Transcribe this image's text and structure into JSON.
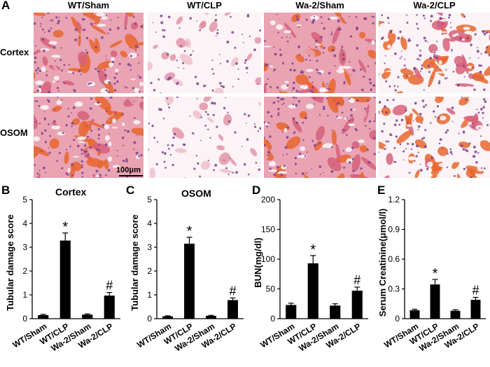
{
  "panel_a": {
    "letter": "A",
    "columns": [
      "WT/Sham",
      "WT/CLP",
      "Wa-2/Sham",
      "Wa-2/CLP"
    ],
    "rows": [
      "Cortex",
      "OSOM"
    ],
    "scale_bar": "100μm"
  },
  "chart_data": [
    {
      "type": "bar",
      "letter": "B",
      "title": "Cortex",
      "ylabel": "Tubular damage score",
      "categories": [
        "WT/Sham",
        "WT/CLP",
        "Wa-2/Sham",
        "Wa-2/CLP"
      ],
      "values": [
        0.15,
        3.28,
        0.17,
        0.97
      ],
      "errors": [
        0.03,
        0.32,
        0.03,
        0.13
      ],
      "annotations": [
        "",
        "*",
        "",
        "#"
      ],
      "ylim": [
        0,
        5
      ],
      "yticks": [
        "0",
        "1",
        "2",
        "3",
        "4",
        "5"
      ]
    },
    {
      "type": "bar",
      "letter": "C",
      "title": "OSOM",
      "ylabel": "Tubular damage score",
      "categories": [
        "WT/Sham",
        "WT/CLP",
        "Wa-2/Sham",
        "Wa-2/CLP"
      ],
      "values": [
        0.1,
        3.15,
        0.12,
        0.78
      ],
      "errors": [
        0.02,
        0.27,
        0.02,
        0.09
      ],
      "annotations": [
        "",
        "*",
        "",
        "#"
      ],
      "ylim": [
        0,
        5
      ],
      "yticks": [
        "0",
        "1",
        "2",
        "3",
        "4",
        "5"
      ]
    },
    {
      "type": "bar",
      "letter": "D",
      "title": "",
      "ylabel": "BUN(mg/dl)",
      "categories": [
        "WT/Sham",
        "WT/CLP",
        "Wa-2/Sham",
        "Wa-2/CLP"
      ],
      "values": [
        23,
        93,
        22,
        47
      ],
      "errors": [
        3,
        13,
        3,
        6
      ],
      "annotations": [
        "",
        "*",
        "",
        "#"
      ],
      "ylim": [
        0,
        200
      ],
      "yticks": [
        "0",
        "50",
        "100",
        "150",
        "200"
      ]
    },
    {
      "type": "bar",
      "letter": "E",
      "title": "",
      "ylabel": "Serum Creatinine(μmol/l)",
      "categories": [
        "WT/Sham",
        "WT/CLP",
        "Wa-2/Sham",
        "Wa-2/CLP"
      ],
      "values": [
        0.085,
        0.345,
        0.08,
        0.19
      ],
      "errors": [
        0.01,
        0.05,
        0.01,
        0.025
      ],
      "annotations": [
        "",
        "*",
        "",
        "#"
      ],
      "ylim": [
        0,
        1.2
      ],
      "yticks": [
        "0",
        "0.3",
        "0.6",
        "0.9",
        "1.2"
      ]
    }
  ],
  "colors": {
    "bar": "#000000",
    "tissue_pink": "#e9a3b3",
    "tissue_dark_pink": "#d6607b",
    "tissue_orange": "#e8662e",
    "lumen_white": "#fbf3f5",
    "nucleus_purple": "#7d3f8c"
  }
}
